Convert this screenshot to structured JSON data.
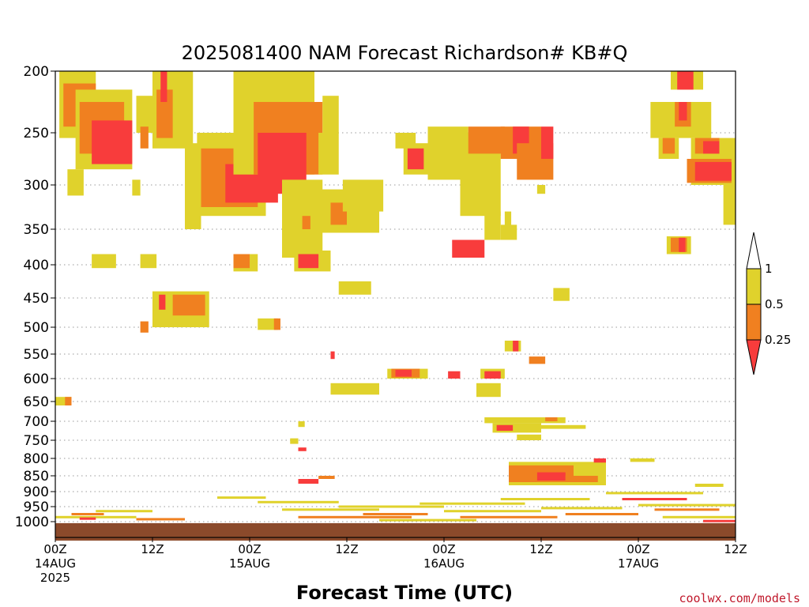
{
  "chart_data": {
    "type": "heatmap",
    "title": "2025081400 NAM Forecast Richardson# KB#Q",
    "xlabel": "Forecast Time (UTC)",
    "ylabel": "",
    "credit": "coolwx.com/models",
    "y_axis": {
      "levels": [
        200,
        250,
        300,
        350,
        400,
        450,
        500,
        550,
        600,
        650,
        700,
        750,
        800,
        850,
        900,
        950,
        1000
      ],
      "ylim": [
        200,
        1010
      ],
      "scale": "pressure (reversed, log-like)"
    },
    "x_axis": {
      "xlim_hours": [
        0,
        84
      ],
      "ticks": [
        {
          "h": 0,
          "label": "00Z",
          "date": "14AUG",
          "year": "2025"
        },
        {
          "h": 12,
          "label": "12Z",
          "date": "",
          "year": ""
        },
        {
          "h": 24,
          "label": "00Z",
          "date": "15AUG",
          "year": ""
        },
        {
          "h": 36,
          "label": "12Z",
          "date": "",
          "year": ""
        },
        {
          "h": 48,
          "label": "00Z",
          "date": "16AUG",
          "year": ""
        },
        {
          "h": 60,
          "label": "12Z",
          "date": "",
          "year": ""
        },
        {
          "h": 72,
          "label": "00Z",
          "date": "17AUG",
          "year": ""
        },
        {
          "h": 84,
          "label": "12Z",
          "date": "",
          "year": ""
        }
      ]
    },
    "colorbar": {
      "labels": [
        "1",
        "0.5",
        "0.25"
      ],
      "bins": [
        {
          "range": "0.5-1",
          "color": "#e0d22c"
        },
        {
          "range": "0.25-0.5",
          "color": "#f08020"
        },
        {
          "range": "<0.25",
          "color": "#f83c3c"
        }
      ]
    },
    "grid": true,
    "colors": {
      "yellow": "#e0d22c",
      "orange": "#f08020",
      "red": "#f83c3c",
      "ground": "#8b4a2b"
    },
    "regions": [
      {
        "h0": 0.5,
        "h1": 5,
        "p0": 200,
        "p1": 255,
        "bin": "0.5-1"
      },
      {
        "h0": 1,
        "h1": 5,
        "p0": 210,
        "p1": 245,
        "bin": "0.25-0.5"
      },
      {
        "h0": 2.5,
        "h1": 9.5,
        "p0": 215,
        "p1": 285,
        "bin": "0.5-1"
      },
      {
        "h0": 3,
        "h1": 8.5,
        "p0": 225,
        "p1": 270,
        "bin": "0.25-0.5"
      },
      {
        "h0": 4.5,
        "h1": 9.5,
        "p0": 240,
        "p1": 280,
        "bin": "<0.25"
      },
      {
        "h0": 1.5,
        "h1": 3.5,
        "p0": 285,
        "p1": 312,
        "bin": "0.5-1"
      },
      {
        "h0": 4.5,
        "h1": 7.5,
        "p0": 385,
        "p1": 405,
        "bin": "0.5-1"
      },
      {
        "h0": 10,
        "h1": 12,
        "p0": 220,
        "p1": 250,
        "bin": "0.5-1"
      },
      {
        "h0": 10.5,
        "h1": 11.5,
        "p0": 245,
        "p1": 265,
        "bin": "0.25-0.5"
      },
      {
        "h0": 12,
        "h1": 17,
        "p0": 200,
        "p1": 265,
        "bin": "0.5-1"
      },
      {
        "h0": 12.5,
        "h1": 14.5,
        "p0": 215,
        "p1": 255,
        "bin": "0.25-0.5"
      },
      {
        "h0": 13,
        "h1": 13.8,
        "p0": 200,
        "p1": 225,
        "bin": "<0.25"
      },
      {
        "h0": 9.5,
        "h1": 10.5,
        "p0": 295,
        "p1": 312,
        "bin": "0.5-1"
      },
      {
        "h0": 10.5,
        "h1": 12.5,
        "p0": 385,
        "p1": 405,
        "bin": "0.5-1"
      },
      {
        "h0": 12,
        "h1": 19,
        "p0": 440,
        "p1": 500,
        "bin": "0.5-1"
      },
      {
        "h0": 14.5,
        "h1": 18.5,
        "p0": 445,
        "p1": 480,
        "bin": "0.25-0.5"
      },
      {
        "h0": 12.8,
        "h1": 13.6,
        "p0": 445,
        "p1": 470,
        "bin": "<0.25"
      },
      {
        "h0": 10.5,
        "h1": 11.5,
        "p0": 490,
        "p1": 510,
        "bin": "0.25-0.5"
      },
      {
        "h0": 16,
        "h1": 18,
        "p0": 260,
        "p1": 350,
        "bin": "0.5-1"
      },
      {
        "h0": 17.5,
        "h1": 26,
        "p0": 250,
        "p1": 335,
        "bin": "0.5-1"
      },
      {
        "h0": 18,
        "h1": 25,
        "p0": 265,
        "p1": 325,
        "bin": "0.25-0.5"
      },
      {
        "h0": 21,
        "h1": 27.5,
        "p0": 280,
        "p1": 320,
        "bin": "<0.25"
      },
      {
        "h0": 22,
        "h1": 32,
        "p0": 200,
        "p1": 290,
        "bin": "0.5-1"
      },
      {
        "h0": 24.5,
        "h1": 33,
        "p0": 225,
        "p1": 290,
        "bin": "0.25-0.5"
      },
      {
        "h0": 25,
        "h1": 31,
        "p0": 250,
        "p1": 310,
        "bin": "<0.25"
      },
      {
        "h0": 28,
        "h1": 33,
        "p0": 295,
        "p1": 390,
        "bin": "0.5-1"
      },
      {
        "h0": 30.5,
        "h1": 31.5,
        "p0": 335,
        "p1": 350,
        "bin": "0.25-0.5"
      },
      {
        "h0": 32.5,
        "h1": 35,
        "p0": 250,
        "p1": 290,
        "bin": "0.5-1"
      },
      {
        "h0": 33,
        "h1": 35,
        "p0": 220,
        "p1": 250,
        "bin": "0.5-1"
      },
      {
        "h0": 22,
        "h1": 25,
        "p0": 385,
        "p1": 410,
        "bin": "0.5-1"
      },
      {
        "h0": 22,
        "h1": 24,
        "p0": 385,
        "p1": 405,
        "bin": "0.25-0.5"
      },
      {
        "h0": 29.5,
        "h1": 34,
        "p0": 380,
        "p1": 410,
        "bin": "0.5-1"
      },
      {
        "h0": 30,
        "h1": 32.5,
        "p0": 385,
        "p1": 405,
        "bin": "<0.25"
      },
      {
        "h0": 25,
        "h1": 27.5,
        "p0": 485,
        "p1": 505,
        "bin": "0.5-1"
      },
      {
        "h0": 27,
        "h1": 27.8,
        "p0": 485,
        "p1": 505,
        "bin": "0.25-0.5"
      },
      {
        "h0": 32.5,
        "h1": 40,
        "p0": 305,
        "p1": 355,
        "bin": "0.5-1"
      },
      {
        "h0": 34,
        "h1": 36,
        "p0": 320,
        "p1": 345,
        "bin": "0.25-0.5"
      },
      {
        "h0": 35.5,
        "h1": 40.5,
        "p0": 295,
        "p1": 330,
        "bin": "0.5-1"
      },
      {
        "h0": 35,
        "h1": 39,
        "p0": 425,
        "p1": 445,
        "bin": "0.5-1"
      },
      {
        "h0": 42,
        "h1": 44.5,
        "p0": 250,
        "p1": 265,
        "bin": "0.5-1"
      },
      {
        "h0": 43,
        "h1": 46,
        "p0": 260,
        "p1": 290,
        "bin": "0.5-1"
      },
      {
        "h0": 43.5,
        "h1": 45.5,
        "p0": 265,
        "p1": 285,
        "bin": "<0.25"
      },
      {
        "h0": 46,
        "h1": 51,
        "p0": 245,
        "p1": 295,
        "bin": "0.5-1"
      },
      {
        "h0": 50,
        "h1": 55,
        "p0": 250,
        "p1": 335,
        "bin": "0.5-1"
      },
      {
        "h0": 51,
        "h1": 55.5,
        "p0": 245,
        "p1": 270,
        "bin": "0.25-0.5"
      },
      {
        "h0": 55,
        "h1": 60,
        "p0": 245,
        "p1": 275,
        "bin": "0.25-0.5"
      },
      {
        "h0": 56.5,
        "h1": 58.5,
        "p0": 245,
        "p1": 270,
        "bin": "<0.25"
      },
      {
        "h0": 57,
        "h1": 61.5,
        "p0": 260,
        "p1": 295,
        "bin": "0.25-0.5"
      },
      {
        "h0": 60,
        "h1": 61.5,
        "p0": 245,
        "p1": 275,
        "bin": "<0.25"
      },
      {
        "h0": 49,
        "h1": 53,
        "p0": 365,
        "p1": 390,
        "bin": "<0.25"
      },
      {
        "h0": 53,
        "h1": 55,
        "p0": 330,
        "p1": 365,
        "bin": "0.5-1"
      },
      {
        "h0": 55,
        "h1": 57,
        "p0": 345,
        "p1": 365,
        "bin": "0.5-1"
      },
      {
        "h0": 55.5,
        "h1": 56.3,
        "p0": 330,
        "p1": 350,
        "bin": "0.5-1"
      },
      {
        "h0": 59.5,
        "h1": 60.5,
        "p0": 300,
        "p1": 310,
        "bin": "0.5-1"
      },
      {
        "h0": 61.5,
        "h1": 63.5,
        "p0": 435,
        "p1": 455,
        "bin": "0.5-1"
      },
      {
        "h0": 55.5,
        "h1": 57.5,
        "p0": 525,
        "p1": 545,
        "bin": "0.5-1"
      },
      {
        "h0": 56.5,
        "h1": 57.2,
        "p0": 525,
        "p1": 545,
        "bin": "<0.25"
      },
      {
        "h0": 58.5,
        "h1": 60.5,
        "p0": 555,
        "p1": 570,
        "bin": "0.25-0.5"
      },
      {
        "h0": 41,
        "h1": 46,
        "p0": 580,
        "p1": 600,
        "bin": "0.5-1"
      },
      {
        "h0": 41.5,
        "h1": 45,
        "p0": 580,
        "p1": 598,
        "bin": "0.25-0.5"
      },
      {
        "h0": 42,
        "h1": 44,
        "p0": 582,
        "p1": 596,
        "bin": "<0.25"
      },
      {
        "h0": 34,
        "h1": 40,
        "p0": 610,
        "p1": 635,
        "bin": "0.5-1"
      },
      {
        "h0": 48.5,
        "h1": 50,
        "p0": 585,
        "p1": 600,
        "bin": "<0.25"
      },
      {
        "h0": 52.5,
        "h1": 55.5,
        "p0": 580,
        "p1": 600,
        "bin": "0.5-1"
      },
      {
        "h0": 53,
        "h1": 55,
        "p0": 585,
        "p1": 600,
        "bin": "<0.25"
      },
      {
        "h0": 52,
        "h1": 55,
        "p0": 610,
        "p1": 640,
        "bin": "0.5-1"
      },
      {
        "h0": 34,
        "h1": 34.5,
        "p0": 545,
        "p1": 560,
        "bin": "<0.25"
      },
      {
        "h0": 53,
        "h1": 63,
        "p0": 690,
        "p1": 705,
        "bin": "0.5-1"
      },
      {
        "h0": 54,
        "h1": 60,
        "p0": 705,
        "p1": 730,
        "bin": "0.5-1"
      },
      {
        "h0": 54.5,
        "h1": 56.5,
        "p0": 710,
        "p1": 725,
        "bin": "<0.25"
      },
      {
        "h0": 57,
        "h1": 60,
        "p0": 735,
        "p1": 750,
        "bin": "0.5-1"
      },
      {
        "h0": 60,
        "h1": 65.5,
        "p0": 710,
        "p1": 720,
        "bin": "0.5-1"
      },
      {
        "h0": 60.5,
        "h1": 62,
        "p0": 690,
        "p1": 700,
        "bin": "0.25-0.5"
      },
      {
        "h0": 56,
        "h1": 68,
        "p0": 810,
        "p1": 880,
        "bin": "0.5-1"
      },
      {
        "h0": 56,
        "h1": 64,
        "p0": 820,
        "p1": 870,
        "bin": "0.25-0.5"
      },
      {
        "h0": 59.5,
        "h1": 63,
        "p0": 840,
        "p1": 865,
        "bin": "<0.25"
      },
      {
        "h0": 63,
        "h1": 67,
        "p0": 850,
        "p1": 870,
        "bin": "0.25-0.5"
      },
      {
        "h0": 66.5,
        "h1": 68,
        "p0": 800,
        "p1": 812,
        "bin": "<0.25"
      },
      {
        "h0": 71,
        "h1": 74,
        "p0": 800,
        "p1": 810,
        "bin": "0.5-1"
      },
      {
        "h0": 30,
        "h1": 32.5,
        "p0": 860,
        "p1": 875,
        "bin": "<0.25"
      },
      {
        "h0": 32.5,
        "h1": 34.5,
        "p0": 850,
        "p1": 860,
        "bin": "0.25-0.5"
      },
      {
        "h0": 29,
        "h1": 30,
        "p0": 745,
        "p1": 760,
        "bin": "0.5-1"
      },
      {
        "h0": 30,
        "h1": 31,
        "p0": 770,
        "p1": 780,
        "bin": "<0.25"
      },
      {
        "h0": 30,
        "h1": 30.8,
        "p0": 700,
        "p1": 715,
        "bin": "0.5-1"
      },
      {
        "h0": 76,
        "h1": 80,
        "p0": 200,
        "p1": 215,
        "bin": "0.5-1"
      },
      {
        "h0": 76.8,
        "h1": 78.8,
        "p0": 200,
        "p1": 215,
        "bin": "<0.25"
      },
      {
        "h0": 73.5,
        "h1": 81,
        "p0": 225,
        "p1": 255,
        "bin": "0.5-1"
      },
      {
        "h0": 76.5,
        "h1": 78.5,
        "p0": 225,
        "p1": 245,
        "bin": "0.25-0.5"
      },
      {
        "h0": 77,
        "h1": 78,
        "p0": 225,
        "p1": 240,
        "bin": "<0.25"
      },
      {
        "h0": 74.5,
        "h1": 77,
        "p0": 255,
        "p1": 275,
        "bin": "0.5-1"
      },
      {
        "h0": 75,
        "h1": 76.5,
        "p0": 255,
        "p1": 270,
        "bin": "0.25-0.5"
      },
      {
        "h0": 78.5,
        "h1": 84,
        "p0": 255,
        "p1": 300,
        "bin": "0.5-1"
      },
      {
        "h0": 79,
        "h1": 82,
        "p0": 255,
        "p1": 270,
        "bin": "0.25-0.5"
      },
      {
        "h0": 80,
        "h1": 82,
        "p0": 258,
        "p1": 270,
        "bin": "<0.25"
      },
      {
        "h0": 78,
        "h1": 83.5,
        "p0": 275,
        "p1": 298,
        "bin": "0.25-0.5"
      },
      {
        "h0": 79,
        "h1": 83.5,
        "p0": 278,
        "p1": 296,
        "bin": "<0.25"
      },
      {
        "h0": 82.5,
        "h1": 84,
        "p0": 300,
        "p1": 345,
        "bin": "0.5-1"
      },
      {
        "h0": 75.5,
        "h1": 78.5,
        "p0": 360,
        "p1": 385,
        "bin": "0.5-1"
      },
      {
        "h0": 76,
        "h1": 78,
        "p0": 362,
        "p1": 382,
        "bin": "0.25-0.5"
      },
      {
        "h0": 77,
        "h1": 77.8,
        "p0": 362,
        "p1": 382,
        "bin": "<0.25"
      },
      {
        "h0": 79,
        "h1": 82.5,
        "p0": 875,
        "p1": 885,
        "bin": "0.5-1"
      },
      {
        "h0": 0,
        "h1": 2,
        "p0": 640,
        "p1": 660,
        "bin": "0.5-1"
      },
      {
        "h0": 1.2,
        "h1": 2,
        "p0": 640,
        "p1": 660,
        "bin": "0.25-0.5"
      }
    ],
    "low_streaks": [
      {
        "h0": 0,
        "h1": 10,
        "p": 985,
        "bin": "0.5-1"
      },
      {
        "h0": 2,
        "h1": 6,
        "p": 975,
        "bin": "0.25-0.5"
      },
      {
        "h0": 3,
        "h1": 5,
        "p": 990,
        "bin": "<0.25"
      },
      {
        "h0": 5,
        "h1": 12,
        "p": 965,
        "bin": "0.5-1"
      },
      {
        "h0": 10,
        "h1": 16,
        "p": 992,
        "bin": "0.25-0.5"
      },
      {
        "h0": 20,
        "h1": 26,
        "p": 920,
        "bin": "0.5-1"
      },
      {
        "h0": 25,
        "h1": 35,
        "p": 935,
        "bin": "0.5-1"
      },
      {
        "h0": 28,
        "h1": 40,
        "p": 960,
        "bin": "0.5-1"
      },
      {
        "h0": 30,
        "h1": 44,
        "p": 985,
        "bin": "0.25-0.5"
      },
      {
        "h0": 35,
        "h1": 48,
        "p": 950,
        "bin": "0.5-1"
      },
      {
        "h0": 38,
        "h1": 46,
        "p": 975,
        "bin": "0.25-0.5"
      },
      {
        "h0": 40,
        "h1": 52,
        "p": 995,
        "bin": "0.5-1"
      },
      {
        "h0": 45,
        "h1": 58,
        "p": 940,
        "bin": "0.5-1"
      },
      {
        "h0": 48,
        "h1": 60,
        "p": 965,
        "bin": "0.5-1"
      },
      {
        "h0": 50,
        "h1": 62,
        "p": 985,
        "bin": "0.25-0.5"
      },
      {
        "h0": 55,
        "h1": 66,
        "p": 925,
        "bin": "0.5-1"
      },
      {
        "h0": 60,
        "h1": 70,
        "p": 955,
        "bin": "0.5-1"
      },
      {
        "h0": 63,
        "h1": 72,
        "p": 975,
        "bin": "0.25-0.5"
      },
      {
        "h0": 68,
        "h1": 80,
        "p": 905,
        "bin": "0.5-1"
      },
      {
        "h0": 70,
        "h1": 78,
        "p": 925,
        "bin": "<0.25"
      },
      {
        "h0": 72,
        "h1": 84,
        "p": 945,
        "bin": "0.5-1"
      },
      {
        "h0": 74,
        "h1": 82,
        "p": 960,
        "bin": "0.25-0.5"
      },
      {
        "h0": 75,
        "h1": 84,
        "p": 985,
        "bin": "0.5-1"
      },
      {
        "h0": 80,
        "h1": 84,
        "p": 998,
        "bin": "<0.25"
      }
    ]
  }
}
